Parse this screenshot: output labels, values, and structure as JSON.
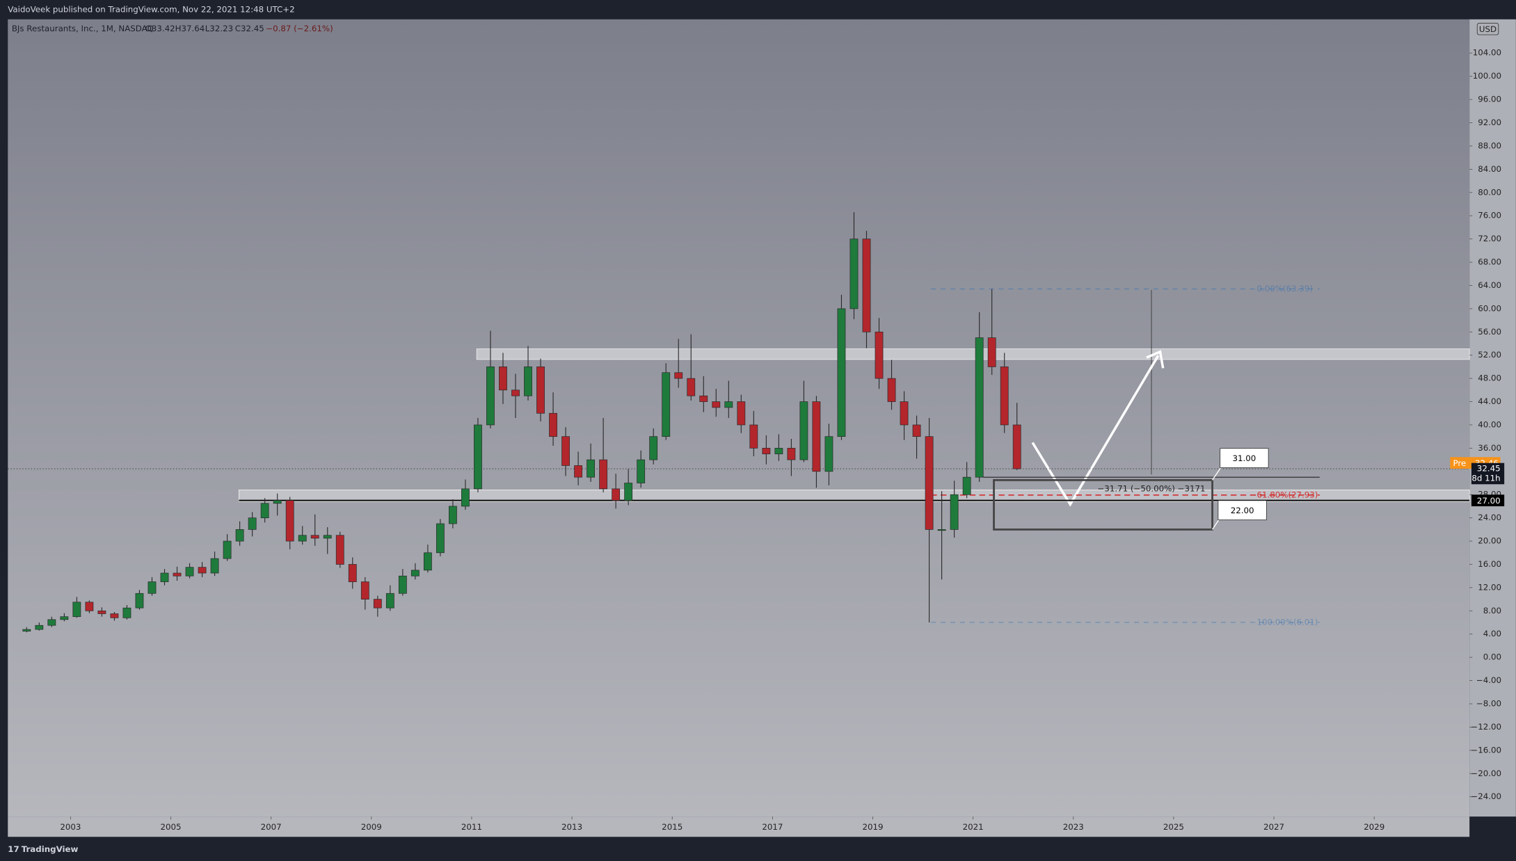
{
  "chart_data": {
    "type": "candlestick",
    "header": "VaidoVeek published on TradingView.com, Nov 22, 2021 12:48 UTC+2",
    "symbol": "BJs Restaurants, Inc., 1M, NASDAQ",
    "ohlc_legend": [
      "O33.42",
      "H37.64",
      "L32.23",
      "C32.45",
      "−0.87 (−2.61%)"
    ],
    "currency": "USD",
    "footer": "TradingView",
    "up_color": "#1e7b3c",
    "down_color": "#b3262c",
    "x": [
      2002.125,
      2002.375,
      2002.625,
      2002.875,
      2003.125,
      2003.375,
      2003.625,
      2003.875,
      2004.125,
      2004.375,
      2004.625,
      2004.875,
      2005.125,
      2005.375,
      2005.625,
      2005.875,
      2006.125,
      2006.375,
      2006.625,
      2006.875,
      2007.125,
      2007.375,
      2007.625,
      2007.875,
      2008.125,
      2008.375,
      2008.625,
      2008.875,
      2009.125,
      2009.375,
      2009.625,
      2009.875,
      2010.125,
      2010.375,
      2010.625,
      2010.875,
      2011.125,
      2011.375,
      2011.625,
      2011.875,
      2012.125,
      2012.375,
      2012.625,
      2012.875,
      2013.125,
      2013.375,
      2013.625,
      2013.875,
      2014.125,
      2014.375,
      2014.625,
      2014.875,
      2015.125,
      2015.375,
      2015.625,
      2015.875,
      2016.125,
      2016.375,
      2016.625,
      2016.875,
      2017.125,
      2017.375,
      2017.625,
      2017.875,
      2018.125,
      2018.375,
      2018.625,
      2018.875,
      2019.125,
      2019.375,
      2019.625,
      2019.875,
      2020.125,
      2020.375,
      2020.625,
      2020.875,
      2021.125,
      2021.375,
      2021.625,
      2021.875
    ],
    "open": [
      4.5,
      4.8,
      5.5,
      6.5,
      7,
      9.5,
      8,
      7.5,
      6.8,
      8.5,
      11,
      13,
      14.5,
      14,
      15.5,
      14.5,
      17,
      20,
      22,
      24,
      26.5,
      27,
      20,
      21,
      20.5,
      21,
      16,
      13,
      10,
      8.5,
      11,
      14,
      15,
      18,
      23,
      26,
      29,
      40,
      50,
      46,
      45,
      50,
      42,
      38,
      33,
      31,
      34,
      29,
      27,
      30,
      34,
      38,
      49,
      48,
      45,
      44,
      43,
      44,
      40,
      36,
      35,
      36,
      34,
      44,
      32,
      38,
      60,
      72,
      56,
      48,
      44,
      40,
      38,
      22,
      22,
      28,
      31,
      55,
      50,
      40
    ],
    "high": [
      5.2,
      6,
      7,
      7.6,
      10.4,
      9.8,
      8.6,
      7.8,
      9,
      11.6,
      13.8,
      15.2,
      15.6,
      16.2,
      16.4,
      18.2,
      21.2,
      23.4,
      25,
      27.4,
      28.2,
      27.6,
      22.6,
      24.6,
      22.4,
      21.6,
      17.2,
      13.8,
      10.6,
      12.4,
      15.2,
      16.2,
      19.4,
      23.8,
      27.2,
      30.6,
      41.2,
      56.2,
      52.4,
      48.8,
      53.6,
      51.4,
      45.6,
      39.6,
      35.4,
      36.8,
      41.2,
      31.6,
      32.4,
      35.6,
      39.4,
      50.6,
      54.8,
      55.6,
      48.4,
      46.2,
      47.6,
      45.2,
      42.4,
      38.2,
      38.4,
      37.6,
      47.6,
      45,
      40.2,
      62.4,
      76.6,
      73.4,
      58.4,
      51.2,
      45.8,
      41.6,
      41.2,
      28.6,
      30.4,
      33.6,
      59.4,
      63.39,
      52.4,
      43.8
    ],
    "low": [
      4.3,
      4.6,
      5.2,
      6.2,
      6.8,
      7.6,
      7,
      6.3,
      6.5,
      8.2,
      10.6,
      12.4,
      13.2,
      13.6,
      13.8,
      14,
      16.6,
      19.2,
      20.8,
      23.2,
      24.4,
      18.6,
      19.4,
      19.2,
      17.8,
      15.4,
      11.8,
      8.2,
      7,
      8,
      10.6,
      13.4,
      14.6,
      17.4,
      22.2,
      25.4,
      28.4,
      39.4,
      43.6,
      41.2,
      44.2,
      40.6,
      36.4,
      31.2,
      29.6,
      30.2,
      28.4,
      25.6,
      26.2,
      29.2,
      33.2,
      37.4,
      46.4,
      44.2,
      42.2,
      41.4,
      41.2,
      38.6,
      34.6,
      33.2,
      33.8,
      31.2,
      33.6,
      29.2,
      29.6,
      37.4,
      58.2,
      53.2,
      46.2,
      42.6,
      37.4,
      34.2,
      6.01,
      13.4,
      20.6,
      27.4,
      30.2,
      48.6,
      38.6,
      32.23
    ],
    "close": [
      4.8,
      5.5,
      6.5,
      7,
      9.5,
      8,
      7.5,
      6.8,
      8.5,
      11,
      13,
      14.5,
      14,
      15.5,
      14.5,
      17,
      20,
      22,
      24,
      26.5,
      27,
      20,
      21,
      20.5,
      21,
      16,
      13,
      10,
      8.5,
      11,
      14,
      15,
      18,
      23,
      26,
      29,
      40,
      50,
      46,
      45,
      50,
      42,
      38,
      33,
      31,
      34,
      29,
      27,
      30,
      34,
      38,
      49,
      48,
      45,
      44,
      43,
      44,
      40,
      36,
      35,
      36,
      34,
      44,
      32,
      38,
      60,
      72,
      56,
      48,
      44,
      40,
      38,
      22,
      22,
      28,
      31,
      55,
      50,
      40,
      32.45
    ],
    "xlim": [
      2001.75,
      2030.9
    ],
    "xticks": [
      2003,
      2005,
      2007,
      2009,
      2011,
      2013,
      2015,
      2017,
      2019,
      2021,
      2023,
      2025,
      2027,
      2029
    ],
    "ylim": [
      -27.4,
      109.8
    ],
    "yticks": [
      {
        "value": 104,
        "label": "104.00"
      },
      {
        "value": 100,
        "label": "100.00"
      },
      {
        "value": 96,
        "label": "96.00"
      },
      {
        "value": 92,
        "label": "92.00"
      },
      {
        "value": 88,
        "label": "88.00"
      },
      {
        "value": 84,
        "label": "84.00"
      },
      {
        "value": 80,
        "label": "80.00"
      },
      {
        "value": 76,
        "label": "76.00"
      },
      {
        "value": 72,
        "label": "72.00"
      },
      {
        "value": 68,
        "label": "68.00"
      },
      {
        "value": 64,
        "label": "64.00"
      },
      {
        "value": 60,
        "label": "60.00"
      },
      {
        "value": 56,
        "label": "56.00"
      },
      {
        "value": 52,
        "label": "52.00"
      },
      {
        "value": 48,
        "label": "48.00"
      },
      {
        "value": 44,
        "label": "44.00"
      },
      {
        "value": 40,
        "label": "40.00"
      },
      {
        "value": 36,
        "label": "36.00"
      },
      {
        "value": 28,
        "label": "28.00"
      },
      {
        "value": 24,
        "label": "24.00"
      },
      {
        "value": 20,
        "label": "20.00"
      },
      {
        "value": 16,
        "label": "16.00"
      },
      {
        "value": 12,
        "label": "12.00"
      },
      {
        "value": 8,
        "label": "8.00"
      },
      {
        "value": 4,
        "label": "4.00"
      },
      {
        "value": 0,
        "label": "0.00"
      },
      {
        "value": -4,
        "label": "−4.00"
      },
      {
        "value": -8,
        "label": "−8.00"
      },
      {
        "value": -12,
        "label": "−12.00"
      },
      {
        "value": -16,
        "label": "−16.00"
      },
      {
        "value": -20,
        "label": "−20.00"
      },
      {
        "value": -24,
        "label": "−24.00"
      }
    ],
    "premarket": {
      "tag": "Pre",
      "value": 32.46
    },
    "last": {
      "value": 32.45,
      "countdown": "8d 11h"
    },
    "level": {
      "value": 27,
      "label": "27.00"
    },
    "targets": [
      {
        "value": 31,
        "label": "31.00"
      },
      {
        "value": 22,
        "label": "22.00"
      }
    ],
    "measure": "−31.71 (−50.00%) −3171",
    "fib": [
      {
        "value": 63.39,
        "label": "0.00%(63.39)"
      },
      {
        "value": 27.93,
        "label": "61.80%(27.93)"
      },
      {
        "value": 6.01,
        "label": "100.00%(6.01)"
      }
    ]
  }
}
